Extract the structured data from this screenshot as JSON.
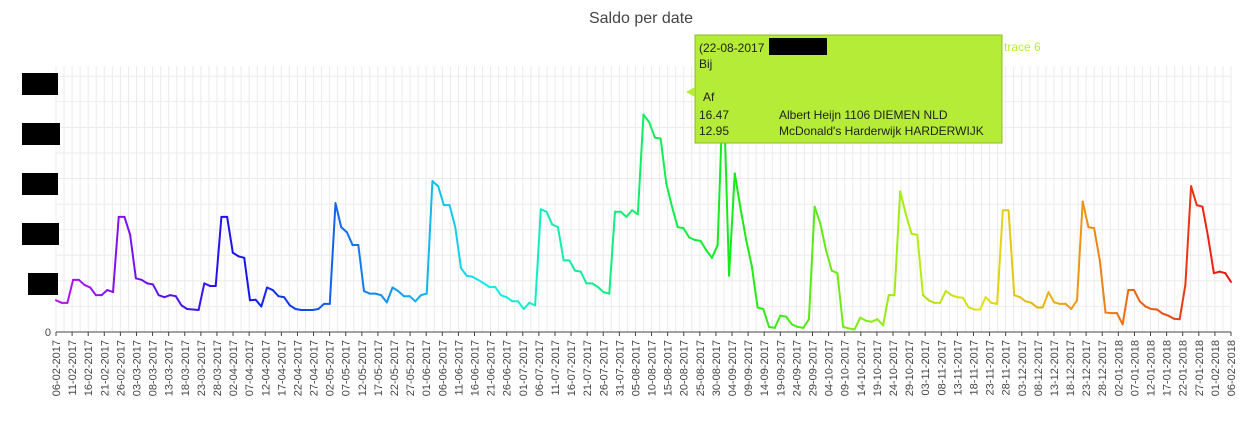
{
  "chart_data": {
    "type": "line",
    "title": "Saldo per date",
    "xlabel": "",
    "ylabel": "",
    "y_tick_labels": [
      "0"
    ],
    "ylim": [
      0,
      5.2
    ],
    "grid": true,
    "color_scheme": "rainbow gradient, purple to red",
    "x_tick_labels": [
      "06-02-2017",
      "11-02-2017",
      "16-02-2017",
      "21-02-2017",
      "26-02-2017",
      "03-03-2017",
      "08-03-2017",
      "13-03-2017",
      "18-03-2017",
      "23-03-2017",
      "28-03-2017",
      "02-04-2017",
      "07-04-2017",
      "12-04-2017",
      "17-04-2017",
      "22-04-2017",
      "27-04-2017",
      "02-05-2017",
      "07-05-2017",
      "12-05-2017",
      "17-05-2017",
      "22-05-2017",
      "27-05-2017",
      "01-06-2017",
      "06-06-2017",
      "11-06-2017",
      "16-06-2017",
      "21-06-2017",
      "26-06-2017",
      "01-07-2017",
      "06-07-2017",
      "11-07-2017",
      "16-07-2017",
      "21-07-2017",
      "26-07-2017",
      "31-07-2017",
      "05-08-2017",
      "10-08-2017",
      "15-08-2017",
      "20-08-2017",
      "25-08-2017",
      "30-08-2017",
      "04-09-2017",
      "09-09-2017",
      "14-09-2017",
      "19-09-2017",
      "24-09-2017",
      "29-09-2017",
      "04-10-2017",
      "09-10-2017",
      "14-10-2017",
      "19-10-2017",
      "24-10-2017",
      "29-10-2017",
      "03-11-2017",
      "08-11-2017",
      "13-11-2017",
      "18-11-2017",
      "23-11-2017",
      "28-11-2017",
      "03-12-2017",
      "08-12-2017",
      "13-12-2017",
      "18-12-2017",
      "23-12-2017",
      "28-12-2017",
      "02-01-2018",
      "07-01-2018",
      "12-01-2018",
      "17-01-2018",
      "22-01-2018",
      "27-01-2018",
      "01-02-2018",
      "06-02-2018"
    ],
    "series": [
      {
        "values": [
          [
            0,
            0.62
          ],
          [
            1,
            0.57
          ],
          [
            2,
            0.57
          ],
          [
            3,
            1.02
          ],
          [
            4,
            1.02
          ],
          [
            5,
            0.92
          ],
          [
            6,
            0.87
          ],
          [
            7,
            0.72
          ],
          [
            8,
            0.72
          ],
          [
            9,
            0.82
          ],
          [
            10,
            0.78
          ],
          [
            11,
            2.25
          ],
          [
            12,
            2.25
          ],
          [
            13,
            1.9
          ],
          [
            14,
            1.05
          ],
          [
            15,
            1.02
          ],
          [
            16,
            0.95
          ],
          [
            17,
            0.93
          ],
          [
            18,
            0.72
          ],
          [
            19,
            0.68
          ],
          [
            20,
            0.72
          ],
          [
            21,
            0.7
          ],
          [
            22,
            0.52
          ],
          [
            23,
            0.45
          ],
          [
            24,
            0.44
          ],
          [
            25,
            0.43
          ],
          [
            26,
            0.95
          ],
          [
            27,
            0.9
          ],
          [
            28,
            0.9
          ],
          [
            29,
            2.25
          ],
          [
            30,
            2.25
          ],
          [
            31,
            1.55
          ],
          [
            32,
            1.48
          ],
          [
            33,
            1.45
          ],
          [
            34,
            0.62
          ],
          [
            35,
            0.63
          ],
          [
            36,
            0.5
          ],
          [
            37,
            0.87
          ],
          [
            38,
            0.82
          ],
          [
            39,
            0.7
          ],
          [
            40,
            0.68
          ],
          [
            41,
            0.52
          ],
          [
            42,
            0.45
          ],
          [
            43,
            0.43
          ],
          [
            44,
            0.43
          ],
          [
            45,
            0.43
          ],
          [
            46,
            0.45
          ],
          [
            47,
            0.55
          ],
          [
            48,
            0.55
          ],
          [
            49,
            2.52
          ],
          [
            50,
            2.05
          ],
          [
            51,
            1.95
          ],
          [
            52,
            1.7
          ],
          [
            53,
            1.7
          ],
          [
            54,
            0.8
          ],
          [
            55,
            0.75
          ],
          [
            56,
            0.75
          ],
          [
            57,
            0.72
          ],
          [
            58,
            0.58
          ],
          [
            59,
            0.87
          ],
          [
            60,
            0.8
          ],
          [
            61,
            0.7
          ],
          [
            62,
            0.7
          ],
          [
            63,
            0.6
          ],
          [
            64,
            0.72
          ],
          [
            65,
            0.75
          ],
          [
            66,
            2.95
          ],
          [
            67,
            2.85
          ],
          [
            68,
            2.48
          ],
          [
            69,
            2.48
          ],
          [
            70,
            2.05
          ],
          [
            71,
            1.25
          ],
          [
            72,
            1.1
          ],
          [
            73,
            1.08
          ],
          [
            74,
            1.02
          ],
          [
            75,
            0.95
          ],
          [
            76,
            0.88
          ],
          [
            77,
            0.88
          ],
          [
            78,
            0.72
          ],
          [
            79,
            0.68
          ],
          [
            80,
            0.6
          ],
          [
            81,
            0.6
          ],
          [
            82,
            0.45
          ],
          [
            83,
            0.57
          ],
          [
            84,
            0.52
          ],
          [
            85,
            2.4
          ],
          [
            86,
            2.35
          ],
          [
            87,
            2.1
          ],
          [
            88,
            2.05
          ],
          [
            89,
            1.4
          ],
          [
            90,
            1.4
          ],
          [
            91,
            1.2
          ],
          [
            92,
            1.18
          ],
          [
            93,
            0.95
          ],
          [
            94,
            0.95
          ],
          [
            95,
            0.88
          ],
          [
            96,
            0.78
          ],
          [
            97,
            0.75
          ],
          [
            98,
            2.35
          ],
          [
            99,
            2.35
          ],
          [
            100,
            2.25
          ],
          [
            101,
            2.38
          ],
          [
            102,
            2.3
          ],
          [
            103,
            4.25
          ],
          [
            104,
            4.1
          ],
          [
            105,
            3.8
          ],
          [
            106,
            3.78
          ],
          [
            107,
            2.9
          ],
          [
            108,
            2.45
          ],
          [
            109,
            2.05
          ],
          [
            110,
            2.03
          ],
          [
            111,
            1.85
          ],
          [
            112,
            1.8
          ],
          [
            113,
            1.78
          ],
          [
            114,
            1.6
          ],
          [
            115,
            1.45
          ],
          [
            116,
            1.7
          ],
          [
            117,
            4.92
          ],
          [
            118,
            1.1
          ],
          [
            119,
            3.1
          ],
          [
            120,
            2.42
          ],
          [
            121,
            1.8
          ],
          [
            122,
            1.28
          ],
          [
            123,
            0.48
          ],
          [
            124,
            0.45
          ],
          [
            125,
            0.1
          ],
          [
            126,
            0.08
          ],
          [
            127,
            0.32
          ],
          [
            128,
            0.3
          ],
          [
            129,
            0.15
          ],
          [
            130,
            0.1
          ],
          [
            131,
            0.08
          ],
          [
            132,
            0.25
          ],
          [
            133,
            2.45
          ],
          [
            134,
            2.12
          ],
          [
            135,
            1.6
          ],
          [
            136,
            1.2
          ],
          [
            137,
            1.15
          ],
          [
            138,
            0.1
          ],
          [
            139,
            0.07
          ],
          [
            140,
            0.05
          ],
          [
            141,
            0.28
          ],
          [
            142,
            0.22
          ],
          [
            143,
            0.2
          ],
          [
            144,
            0.25
          ],
          [
            145,
            0.13
          ],
          [
            146,
            0.72
          ],
          [
            147,
            0.72
          ],
          [
            148,
            2.75
          ],
          [
            149,
            2.3
          ],
          [
            150,
            1.92
          ],
          [
            151,
            1.9
          ],
          [
            152,
            0.72
          ],
          [
            153,
            0.62
          ],
          [
            154,
            0.57
          ],
          [
            155,
            0.57
          ],
          [
            156,
            0.8
          ],
          [
            157,
            0.72
          ],
          [
            158,
            0.68
          ],
          [
            159,
            0.67
          ],
          [
            160,
            0.48
          ],
          [
            161,
            0.44
          ],
          [
            162,
            0.44
          ],
          [
            163,
            0.68
          ],
          [
            164,
            0.57
          ],
          [
            165,
            0.55
          ],
          [
            166,
            2.38
          ],
          [
            167,
            2.38
          ],
          [
            168,
            0.72
          ],
          [
            169,
            0.68
          ],
          [
            170,
            0.6
          ],
          [
            171,
            0.57
          ],
          [
            172,
            0.48
          ],
          [
            173,
            0.48
          ],
          [
            174,
            0.78
          ],
          [
            175,
            0.58
          ],
          [
            176,
            0.55
          ],
          [
            177,
            0.55
          ],
          [
            178,
            0.45
          ],
          [
            179,
            0.62
          ],
          [
            180,
            2.55
          ],
          [
            181,
            2.05
          ],
          [
            182,
            2.03
          ],
          [
            183,
            1.4
          ],
          [
            184,
            0.38
          ],
          [
            185,
            0.37
          ],
          [
            186,
            0.37
          ],
          [
            187,
            0.15
          ],
          [
            188,
            0.82
          ],
          [
            189,
            0.82
          ],
          [
            190,
            0.6
          ],
          [
            191,
            0.5
          ],
          [
            192,
            0.45
          ],
          [
            193,
            0.44
          ],
          [
            194,
            0.36
          ],
          [
            195,
            0.32
          ],
          [
            196,
            0.26
          ],
          [
            197,
            0.25
          ],
          [
            198,
            0.92
          ],
          [
            199,
            2.85
          ],
          [
            200,
            2.48
          ],
          [
            201,
            2.45
          ],
          [
            202,
            1.85
          ],
          [
            203,
            1.15
          ],
          [
            204,
            1.18
          ],
          [
            205,
            1.15
          ],
          [
            206,
            0.98
          ]
        ]
      }
    ],
    "tooltip": {
      "title": "(22-08-2017",
      "line_bij": "Bij",
      "line_af": "Af",
      "rows": [
        {
          "amount": "16.47",
          "description": "Albert Heijn 1106 DIEMEN NLD"
        },
        {
          "amount": "12.95",
          "description": "McDonald's Harderwijk HARDERWIJK"
        }
      ],
      "series_label": "trace 6",
      "background": "#b5ec37",
      "series_label_color": "#b5ec37"
    }
  }
}
